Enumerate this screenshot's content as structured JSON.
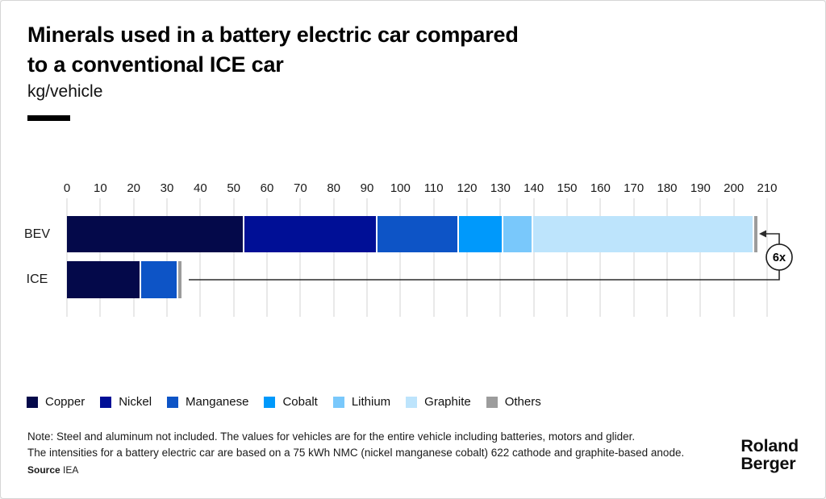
{
  "header": {
    "title_line1": "Minerals used in a battery electric car compared",
    "title_line2": "to a conventional ICE car",
    "subtitle": "kg/vehicle"
  },
  "chart_data": {
    "type": "bar",
    "orientation": "horizontal",
    "stacked": true,
    "unit": "kg/vehicle",
    "categories": [
      "BEV",
      "ICE"
    ],
    "series": [
      {
        "name": "Copper",
        "color": "#04094a",
        "values": [
          53.2,
          22.3
        ]
      },
      {
        "name": "Nickel",
        "color": "#000f96",
        "values": [
          39.9,
          0
        ]
      },
      {
        "name": "Manganese",
        "color": "#0d54c6",
        "values": [
          24.5,
          11.2
        ]
      },
      {
        "name": "Cobalt",
        "color": "#0099fb",
        "values": [
          13.3,
          0
        ]
      },
      {
        "name": "Lithium",
        "color": "#79c8fb",
        "values": [
          8.9,
          0
        ]
      },
      {
        "name": "Graphite",
        "color": "#bde4fc",
        "values": [
          66.3,
          0
        ]
      },
      {
        "name": "Others",
        "color": "#9c9c9c",
        "values": [
          0.9,
          0.4
        ]
      }
    ],
    "totals": {
      "BEV": 207.0,
      "ICE": 33.9
    },
    "axis": {
      "min": 0,
      "max": 210,
      "tick_step": 10,
      "ticks": [
        0,
        10,
        20,
        30,
        40,
        50,
        60,
        70,
        80,
        90,
        100,
        110,
        120,
        130,
        140,
        150,
        160,
        170,
        180,
        190,
        200,
        210
      ]
    },
    "grid": "vertical",
    "legend_position": "bottom",
    "annotation": {
      "label": "6x",
      "meaning": "BEV total is ~6 times ICE total"
    }
  },
  "footer": {
    "note_line1": "Note: Steel and aluminum not included. The values for vehicles are for the entire vehicle including batteries, motors and glider.",
    "note_line2": "The intensities for a battery electric car are based on a 75 kWh NMC (nickel manganese cobalt) 622 cathode and graphite-based anode.",
    "source_label": "Source",
    "source_value": "IEA",
    "logo_line1": "Roland",
    "logo_line2": "Berger"
  }
}
